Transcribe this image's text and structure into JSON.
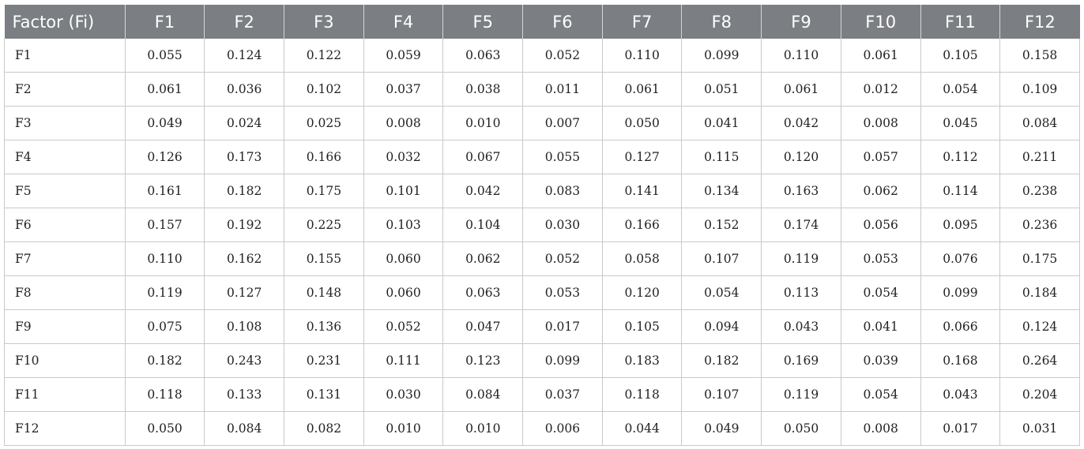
{
  "table": {
    "header": [
      "Factor (Fi)",
      "F1",
      "F2",
      "F3",
      "F4",
      "F5",
      "F6",
      "F7",
      "F8",
      "F9",
      "F10",
      "F11",
      "F12"
    ],
    "rows": [
      [
        "F1",
        "0.055",
        "0.124",
        "0.122",
        "0.059",
        "0.063",
        "0.052",
        "0.110",
        "0.099",
        "0.110",
        "0.061",
        "0.105",
        "0.158"
      ],
      [
        "F2",
        "0.061",
        "0.036",
        "0.102",
        "0.037",
        "0.038",
        "0.011",
        "0.061",
        "0.051",
        "0.061",
        "0.012",
        "0.054",
        "0.109"
      ],
      [
        "F3",
        "0.049",
        "0.024",
        "0.025",
        "0.008",
        "0.010",
        "0.007",
        "0.050",
        "0.041",
        "0.042",
        "0.008",
        "0.045",
        "0.084"
      ],
      [
        "F4",
        "0.126",
        "0.173",
        "0.166",
        "0.032",
        "0.067",
        "0.055",
        "0.127",
        "0.115",
        "0.120",
        "0.057",
        "0.112",
        "0.211"
      ],
      [
        "F5",
        "0.161",
        "0.182",
        "0.175",
        "0.101",
        "0.042",
        "0.083",
        "0.141",
        "0.134",
        "0.163",
        "0.062",
        "0.114",
        "0.238"
      ],
      [
        "F6",
        "0.157",
        "0.192",
        "0.225",
        "0.103",
        "0.104",
        "0.030",
        "0.166",
        "0.152",
        "0.174",
        "0.056",
        "0.095",
        "0.236"
      ],
      [
        "F7",
        "0.110",
        "0.162",
        "0.155",
        "0.060",
        "0.062",
        "0.052",
        "0.058",
        "0.107",
        "0.119",
        "0.053",
        "0.076",
        "0.175"
      ],
      [
        "F8",
        "0.119",
        "0.127",
        "0.148",
        "0.060",
        "0.063",
        "0.053",
        "0.120",
        "0.054",
        "0.113",
        "0.054",
        "0.099",
        "0.184"
      ],
      [
        "F9",
        "0.075",
        "0.108",
        "0.136",
        "0.052",
        "0.047",
        "0.017",
        "0.105",
        "0.094",
        "0.043",
        "0.041",
        "0.066",
        "0.124"
      ],
      [
        "F10",
        "0.182",
        "0.243",
        "0.231",
        "0.111",
        "0.123",
        "0.099",
        "0.183",
        "0.182",
        "0.169",
        "0.039",
        "0.168",
        "0.264"
      ],
      [
        "F11",
        "0.118",
        "0.133",
        "0.131",
        "0.030",
        "0.084",
        "0.037",
        "0.118",
        "0.107",
        "0.119",
        "0.054",
        "0.043",
        "0.204"
      ],
      [
        "F12",
        "0.050",
        "0.084",
        "0.082",
        "0.010",
        "0.010",
        "0.006",
        "0.044",
        "0.049",
        "0.050",
        "0.008",
        "0.017",
        "0.031"
      ]
    ]
  }
}
